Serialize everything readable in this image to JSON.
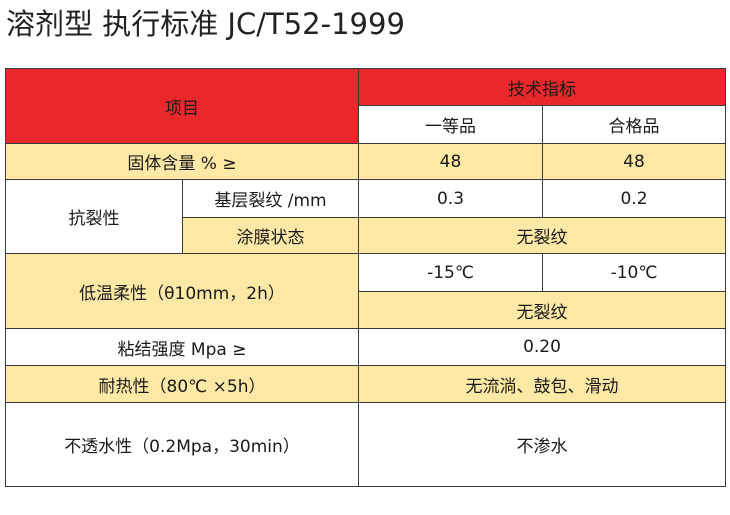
{
  "title": "溶剂型  执行标准 JC/T52-1999",
  "table": {
    "header": {
      "item": "项目",
      "tech": "技术指标",
      "grade1": "一等品",
      "grade2": "合格品"
    },
    "solid": {
      "label": "固体含量 % ≥",
      "v1": "48",
      "v2": "48"
    },
    "crack": {
      "label": "抗裂性",
      "sub1": "基层裂纹 /mm",
      "v1": "0.3",
      "v2": "0.2",
      "sub2": "涂膜状态",
      "v3": "无裂纹"
    },
    "lowtemp": {
      "label": "低温柔性（θ10mm，2h）",
      "v1": "-15℃",
      "v2": "-10℃",
      "v3": "无裂纹"
    },
    "bond": {
      "label": "粘结强度 Mpa ≥",
      "v": "0.20"
    },
    "heat": {
      "label": "耐热性（80℃ ×5h）",
      "v": "无流淌、鼓包、滑动"
    },
    "water": {
      "label": "不透水性（0.2Mpa，30min）",
      "v": "不渗水"
    }
  }
}
